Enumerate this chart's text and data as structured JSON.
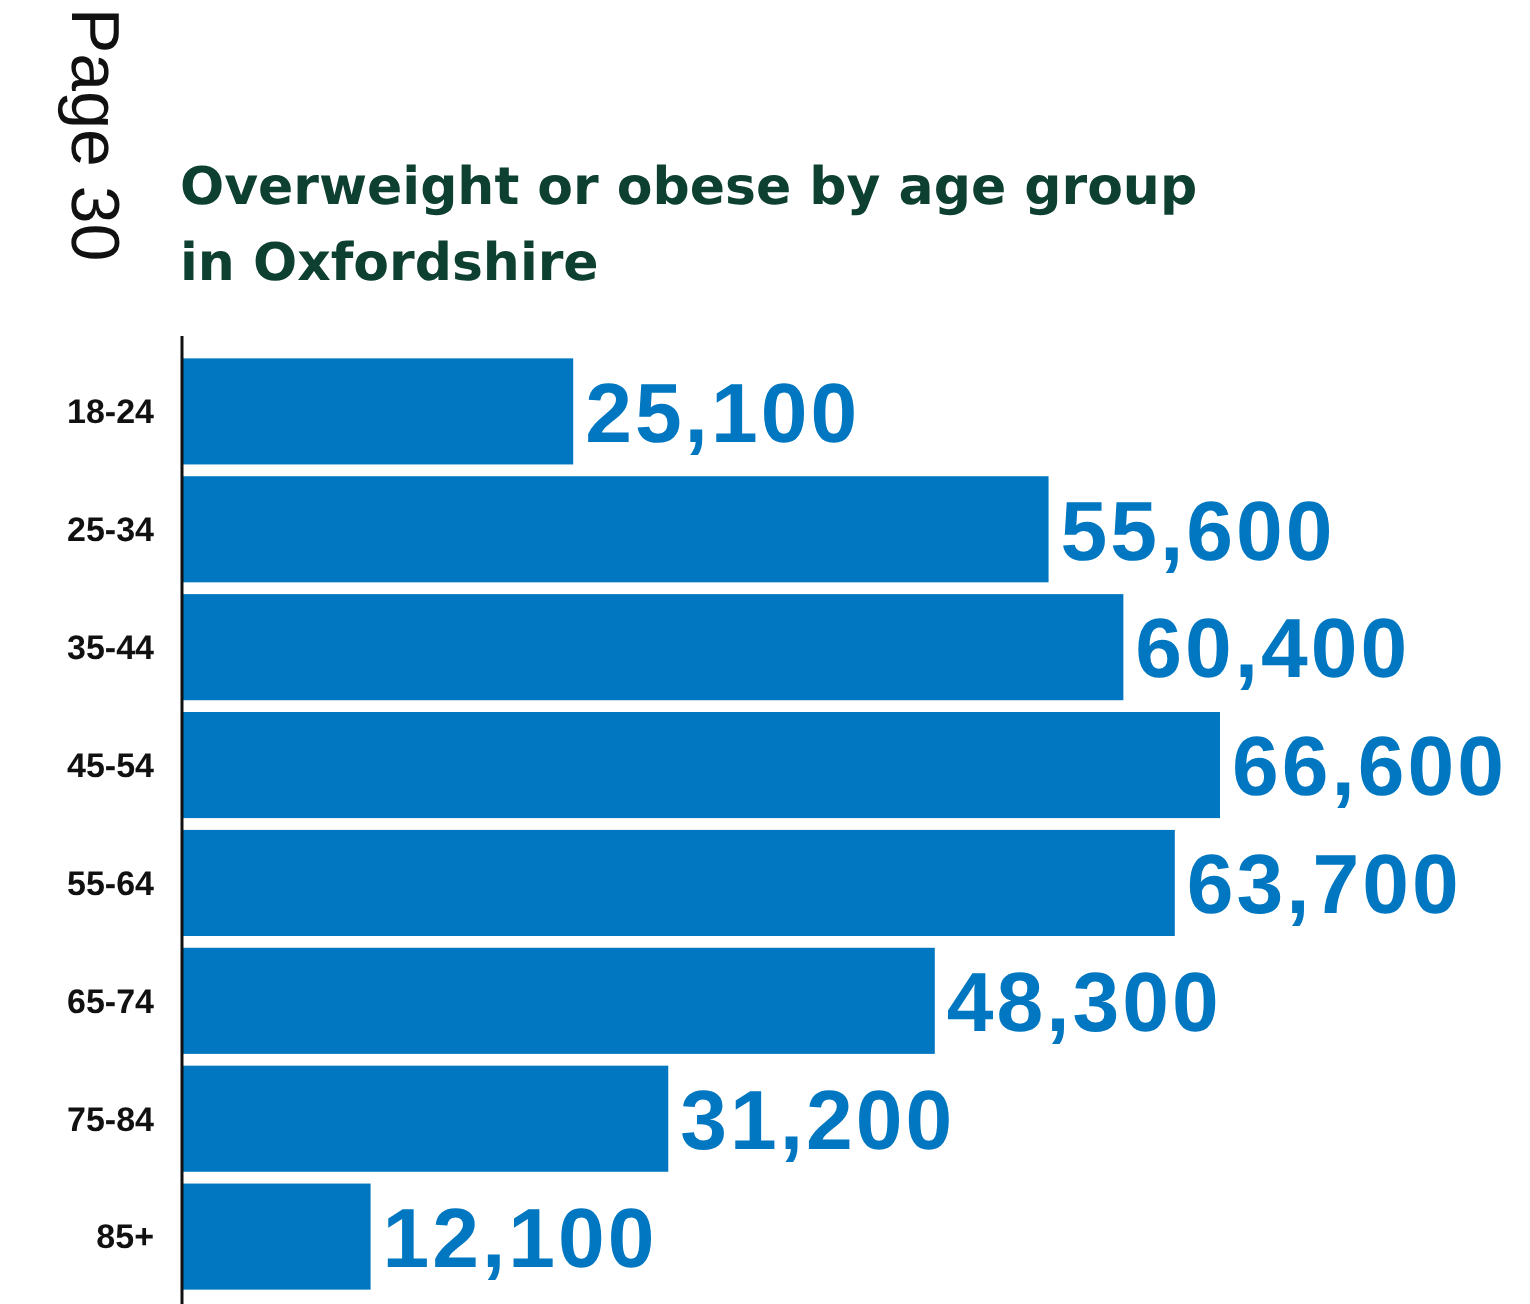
{
  "chart_data": {
    "type": "bar",
    "orientation": "horizontal",
    "title": "Overweight or obese by age group\nin Oxfordshire",
    "annotations": [
      "Page 30"
    ],
    "categories": [
      "18-24",
      "25-34",
      "35-44",
      "45-54",
      "55-64",
      "65-74",
      "75-84",
      "85+"
    ],
    "values": [
      25100,
      55600,
      60400,
      66600,
      63700,
      48300,
      31200,
      12100
    ],
    "value_labels": [
      "25,100",
      "55,600",
      "60,400",
      "66,600",
      "63,700",
      "48,300",
      "31,200",
      "12,100"
    ],
    "color": "#0077c0"
  }
}
